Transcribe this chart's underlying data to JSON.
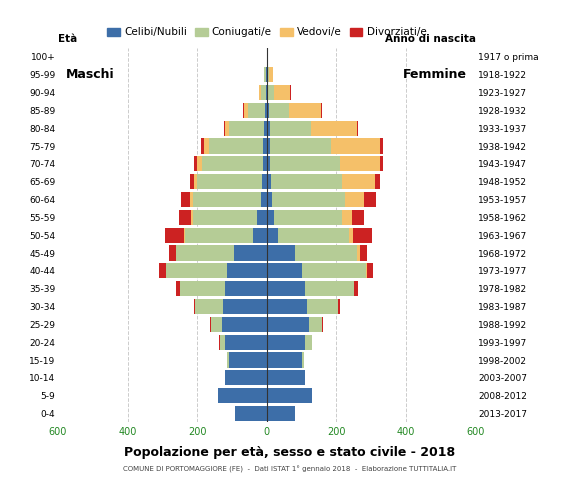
{
  "age_groups_bottom_to_top": [
    "0-4",
    "5-9",
    "10-14",
    "15-19",
    "20-24",
    "25-29",
    "30-34",
    "35-39",
    "40-44",
    "45-49",
    "50-54",
    "55-59",
    "60-64",
    "65-69",
    "70-74",
    "75-79",
    "80-84",
    "85-89",
    "90-94",
    "95-99",
    "100+"
  ],
  "birth_years_bottom_to_top": [
    "2013-2017",
    "2008-2012",
    "2003-2007",
    "1998-2002",
    "1993-1997",
    "1988-1992",
    "1983-1987",
    "1978-1982",
    "1973-1977",
    "1968-1972",
    "1963-1967",
    "1958-1962",
    "1953-1957",
    "1948-1952",
    "1943-1947",
    "1938-1942",
    "1933-1937",
    "1928-1932",
    "1923-1927",
    "1918-1922",
    "1917 o prima"
  ],
  "males": {
    "celibinubili": [
      90,
      140,
      120,
      110,
      120,
      130,
      125,
      120,
      115,
      95,
      40,
      28,
      18,
      15,
      12,
      12,
      8,
      5,
      2,
      2,
      0
    ],
    "coniugati": [
      0,
      0,
      0,
      5,
      15,
      30,
      80,
      130,
      175,
      165,
      195,
      185,
      195,
      185,
      175,
      155,
      100,
      50,
      15,
      5,
      0
    ],
    "vedovi": [
      0,
      0,
      0,
      0,
      0,
      0,
      0,
      0,
      1,
      2,
      3,
      5,
      8,
      10,
      15,
      14,
      12,
      10,
      5,
      2,
      0
    ],
    "divorziati": [
      0,
      0,
      0,
      0,
      1,
      2,
      5,
      10,
      20,
      20,
      55,
      35,
      25,
      10,
      8,
      8,
      3,
      3,
      0,
      0,
      0
    ]
  },
  "females": {
    "celibinubili": [
      82,
      130,
      110,
      100,
      110,
      120,
      115,
      110,
      100,
      80,
      32,
      22,
      14,
      12,
      10,
      10,
      8,
      5,
      2,
      2,
      0
    ],
    "coniugate": [
      0,
      0,
      0,
      8,
      20,
      40,
      90,
      140,
      185,
      180,
      205,
      195,
      210,
      205,
      200,
      175,
      120,
      60,
      20,
      5,
      0
    ],
    "vedove": [
      0,
      0,
      0,
      0,
      0,
      0,
      1,
      2,
      3,
      8,
      10,
      28,
      55,
      95,
      115,
      140,
      130,
      90,
      45,
      12,
      2
    ],
    "divorziate": [
      0,
      0,
      0,
      0,
      1,
      2,
      5,
      10,
      18,
      20,
      55,
      35,
      35,
      12,
      10,
      8,
      4,
      3,
      2,
      0,
      0
    ]
  },
  "colors": {
    "celibinubili": "#3d6ea8",
    "coniugati": "#b5cc96",
    "vedovi": "#f5c069",
    "divorziati": "#cc2222"
  },
  "xlim": 600,
  "title": "Popolazione per età, sesso e stato civile - 2018",
  "subtitle": "COMUNE DI PORTOMAGGIORE (FE)  -  Dati ISTAT 1° gennaio 2018  -  Elaborazione TUTTITALIA.IT",
  "legend_labels": [
    "Celibi/Nubili",
    "Coniugati/e",
    "Vedovi/e",
    "Divorziati/e"
  ],
  "bg_color": "#ffffff",
  "grid_color": "#cccccc",
  "bar_height": 0.85
}
